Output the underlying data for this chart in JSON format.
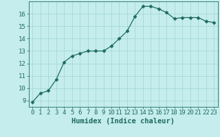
{
  "xlabel": "Humidex (Indice chaleur)",
  "x": [
    0,
    1,
    2,
    3,
    4,
    5,
    6,
    7,
    8,
    9,
    10,
    11,
    12,
    13,
    14,
    15,
    16,
    17,
    18,
    19,
    20,
    21,
    22,
    23
  ],
  "y": [
    8.9,
    9.6,
    9.8,
    10.7,
    12.1,
    12.6,
    12.8,
    13.0,
    13.0,
    13.0,
    13.4,
    14.0,
    14.6,
    15.8,
    16.6,
    16.6,
    16.4,
    16.1,
    15.6,
    15.7,
    15.7,
    15.7,
    15.4,
    15.3
  ],
  "line_color": "#1d6b5e",
  "marker": "D",
  "marker_size": 2.5,
  "bg_color": "#c5eded",
  "grid_color": "#9fd4d4",
  "ylim": [
    8.5,
    17.0
  ],
  "yticks": [
    9,
    10,
    11,
    12,
    13,
    14,
    15,
    16
  ],
  "xticks": [
    0,
    1,
    2,
    3,
    4,
    5,
    6,
    7,
    8,
    9,
    10,
    11,
    12,
    13,
    14,
    15,
    16,
    17,
    18,
    19,
    20,
    21,
    22,
    23
  ],
  "tick_label_fontsize": 6.5,
  "xlabel_fontsize": 7.5,
  "tick_color": "#1d6b5e",
  "spine_color": "#1d6b5e"
}
